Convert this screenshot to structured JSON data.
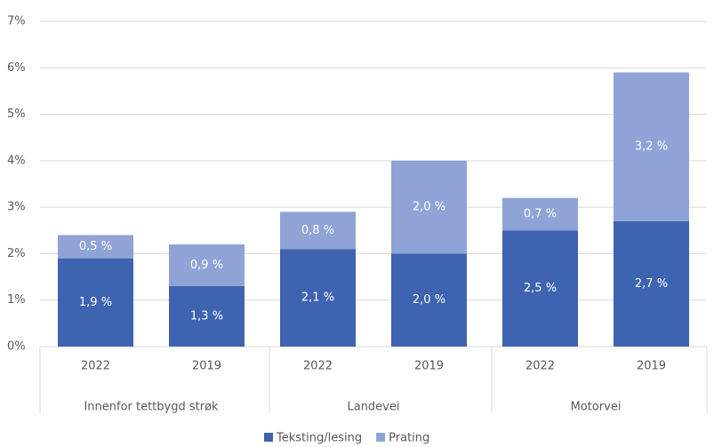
{
  "chart_data": {
    "type": "stacked_bar",
    "categories": [
      "2022",
      "2019",
      "2022",
      "2019",
      "2022",
      "2019"
    ],
    "groups": [
      "Innenfor tettbygd strøk",
      "Landevei",
      "Motorvei"
    ],
    "series": [
      {
        "name": "Teksting/lesing",
        "color": "#3e63b0",
        "values": [
          1.9,
          1.3,
          2.1,
          2.0,
          2.5,
          2.7
        ],
        "value_labels": [
          "1,9 %",
          "1,3 %",
          "2,1 %",
          "2,0 %",
          "2,5 %",
          "2,7 %"
        ]
      },
      {
        "name": "Prating",
        "color": "#8fa3d6",
        "values": [
          0.5,
          0.9,
          0.8,
          2.0,
          0.7,
          3.2
        ],
        "value_labels": [
          "0,5 %",
          "0,9 %",
          "0,8 %",
          "2,0 %",
          "0,7 %",
          "3,2 %"
        ]
      }
    ],
    "ylim": [
      0,
      7
    ],
    "yticks": [
      {
        "value": 0,
        "label": "0%"
      },
      {
        "value": 1,
        "label": "1%"
      },
      {
        "value": 2,
        "label": "2%"
      },
      {
        "value": 3,
        "label": "3%"
      },
      {
        "value": 4,
        "label": "4%"
      },
      {
        "value": 5,
        "label": "5%"
      },
      {
        "value": 6,
        "label": "6%"
      },
      {
        "value": 7,
        "label": "7%"
      }
    ],
    "grid": true,
    "legend": "bottom"
  }
}
